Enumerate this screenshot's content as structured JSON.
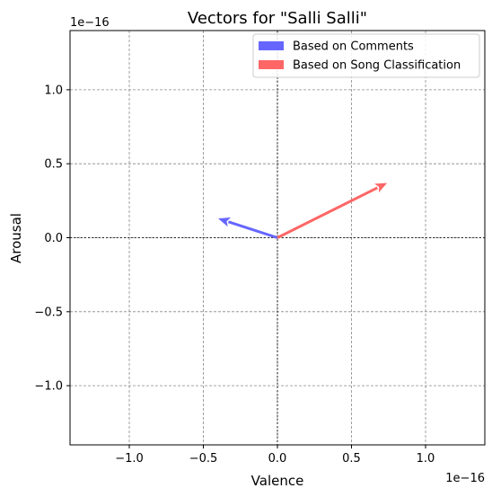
{
  "chart_data": {
    "type": "quiver",
    "title": "Vectors for \"Salli Salli\"",
    "xlabel": "Valence",
    "ylabel": "Arousal",
    "axis_scale_text": "1e−16",
    "xlim": [
      -1.4,
      1.4
    ],
    "ylim": [
      -1.4,
      1.4
    ],
    "xticks": [
      -1.0,
      -0.5,
      0.0,
      0.5,
      1.0
    ],
    "yticks": [
      -1.0,
      -0.5,
      0.0,
      0.5,
      1.0
    ],
    "xtick_labels": [
      "−1.0",
      "−0.5",
      "0.0",
      "0.5",
      "1.0"
    ],
    "ytick_labels": [
      "−1.0",
      "−0.5",
      "0.0",
      "0.5",
      "1.0"
    ],
    "grid": true,
    "legend_position": "top-right",
    "series": [
      {
        "name": "Based on Comments",
        "color": "#6666ff",
        "origin": [
          0,
          0
        ],
        "vector": [
          -0.4,
          0.13
        ]
      },
      {
        "name": "Based on Song Classification",
        "color": "#ff6666",
        "origin": [
          0,
          0
        ],
        "vector": [
          0.74,
          0.37
        ]
      }
    ]
  }
}
